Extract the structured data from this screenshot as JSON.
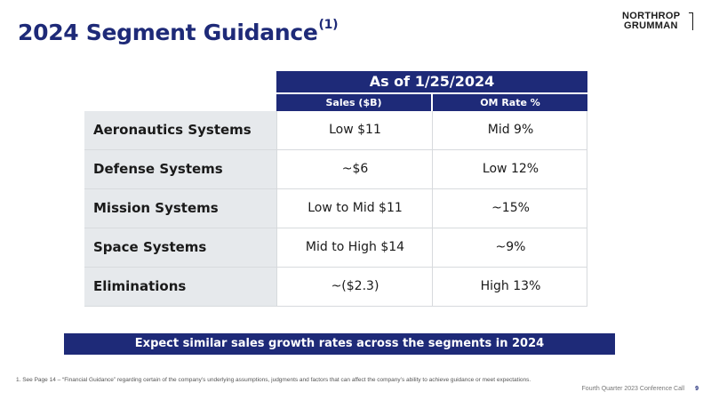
{
  "slide": {
    "title": "2024 Segment Guidance",
    "title_footnote_marker": "(1)"
  },
  "logo": {
    "line1": "NORTHROP",
    "line2": "GRUMMAN"
  },
  "table": {
    "header": "As of 1/25/2024",
    "columns": [
      "Sales ($B)",
      "OM Rate %"
    ],
    "rows": [
      {
        "segment": "Aeronautics Systems",
        "sales": "Low $11",
        "om_rate": "Mid 9%"
      },
      {
        "segment": "Defense Systems",
        "sales": "~$6",
        "om_rate": "Low 12%"
      },
      {
        "segment": "Mission Systems",
        "sales": "Low to Mid $11",
        "om_rate": "~15%"
      },
      {
        "segment": "Space Systems",
        "sales": "Mid to High $14",
        "om_rate": "~9%"
      },
      {
        "segment": "Eliminations",
        "sales": "~($2.3)",
        "om_rate": "High 13%"
      }
    ]
  },
  "banner": {
    "text": "Expect similar sales growth rates across the segments in 2024"
  },
  "footer": {
    "footnote": "1.  See Page 14 – “Financial Guidance” regarding certain of the company’s underlying assumptions, judgments and factors that can affect the company’s ability to achieve guidance or meet expectations.",
    "event": "Fourth Quarter 2023 Conference Call",
    "page_number": "9"
  },
  "colors": {
    "brand_navy": "#1e2a78",
    "segment_cell_bg": "#e6e9ec",
    "text": "#1a1a1a"
  }
}
